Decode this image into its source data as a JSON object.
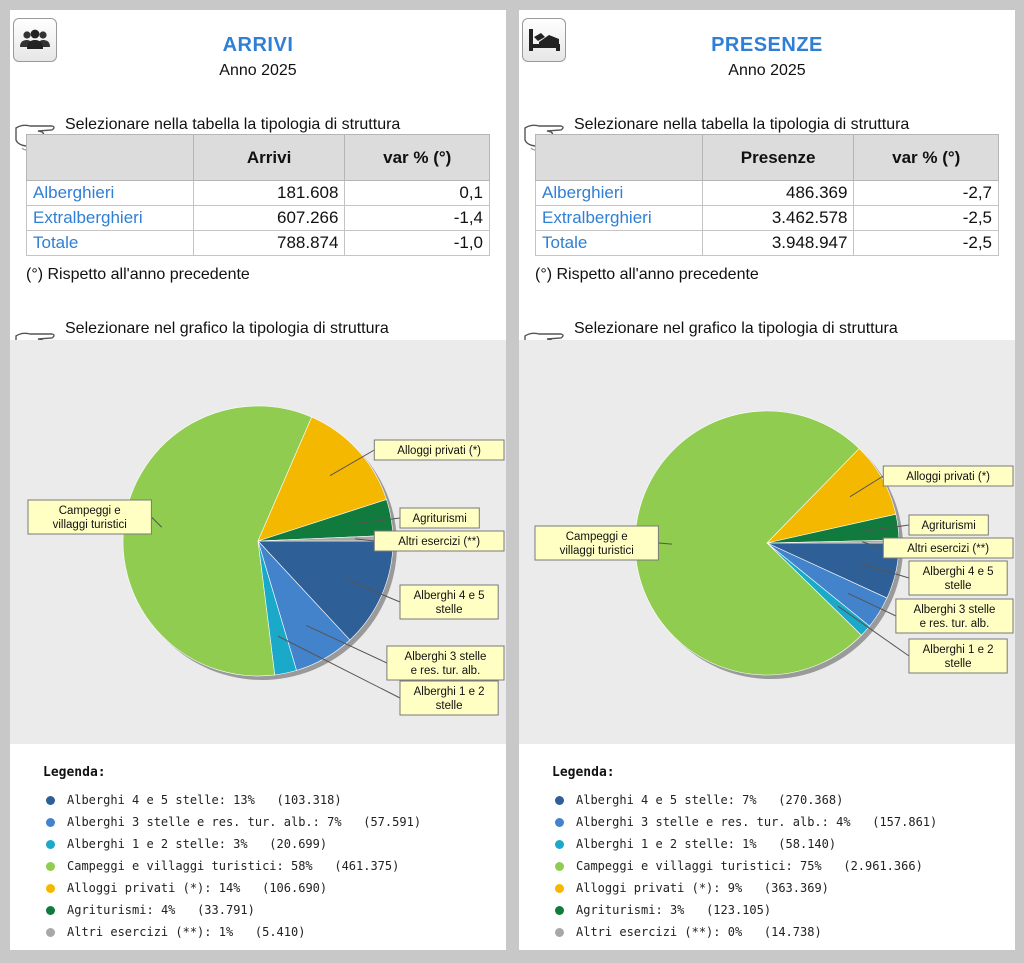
{
  "panels": [
    {
      "id": "arrivi",
      "icon": "people-group-icon",
      "title": "ARRIVI",
      "subtitle": "Anno 2025",
      "table_instruction": "Selezionare nella tabella la tipologia di struttura",
      "table": {
        "headers": [
          "",
          "Arrivi",
          "var % (°)"
        ],
        "rows": [
          {
            "label": "Alberghieri",
            "value": "181.608",
            "var": "0,1"
          },
          {
            "label": "Extralberghieri",
            "value": "607.266",
            "var": "-1,4"
          },
          {
            "label": "Totale",
            "value": "788.874",
            "var": "-1,0"
          }
        ]
      },
      "note": "(°) Rispetto all'anno precedente",
      "chart_instruction": "Selezionare nel grafico la tipologia di struttura",
      "legend_title": "Legenda:",
      "chart_data": {
        "type": "pie",
        "slices": [
          {
            "label": "Alberghi 4 e 5 stelle",
            "callout": [
              "Alberghi 4 e 5",
              "stelle"
            ],
            "percent": "13%",
            "value": 103318,
            "value_text": "103.318",
            "color": "#2e5f96"
          },
          {
            "label": "Alberghi 3 stelle e res. tur. alb.",
            "callout": [
              "Alberghi 3 stelle",
              "e res. tur. alb."
            ],
            "percent": "7%",
            "value": 57591,
            "value_text": "57.591",
            "color": "#4383cc"
          },
          {
            "label": "Alberghi 1 e 2 stelle",
            "callout": [
              "Alberghi 1 e 2",
              "stelle"
            ],
            "percent": "3%",
            "value": 20699,
            "value_text": "20.699",
            "color": "#1aa9c9"
          },
          {
            "label": "Campeggi e villaggi turistici",
            "callout": [
              "Campeggi e",
              "villaggi turistici"
            ],
            "percent": "58%",
            "value": 461375,
            "value_text": "461.375",
            "color": "#8fcc4f"
          },
          {
            "label": "Alloggi privati (*)",
            "callout": [
              "Alloggi privati (*)"
            ],
            "percent": "14%",
            "value": 106690,
            "value_text": "106.690",
            "color": "#f5b800"
          },
          {
            "label": "Agriturismi",
            "callout": [
              "Agriturismi"
            ],
            "percent": "4%",
            "value": 33791,
            "value_text": "33.791",
            "color": "#117a3d"
          },
          {
            "label": "Altri esercizi (**)",
            "callout": [
              "Altri esercizi (**)"
            ],
            "percent": "1%",
            "value": 5410,
            "value_text": "5.410",
            "color": "#a8a8a8"
          }
        ]
      }
    },
    {
      "id": "presenze",
      "icon": "bed-icon",
      "title": "PRESENZE",
      "subtitle": "Anno 2025",
      "table_instruction": "Selezionare nella tabella la tipologia di struttura",
      "table": {
        "headers": [
          "",
          "Presenze",
          "var % (°)"
        ],
        "rows": [
          {
            "label": "Alberghieri",
            "value": "486.369",
            "var": "-2,7"
          },
          {
            "label": "Extralberghieri",
            "value": "3.462.578",
            "var": "-2,5"
          },
          {
            "label": "Totale",
            "value": "3.948.947",
            "var": "-2,5"
          }
        ]
      },
      "note": "(°) Rispetto all'anno precedente",
      "chart_instruction": "Selezionare nel grafico la tipologia di struttura",
      "legend_title": "Legenda:",
      "chart_data": {
        "type": "pie",
        "slices": [
          {
            "label": "Alberghi 4 e 5 stelle",
            "callout": [
              "Alberghi 4 e 5",
              "stelle"
            ],
            "percent": "7%",
            "value": 270368,
            "value_text": "270.368",
            "color": "#2e5f96"
          },
          {
            "label": "Alberghi 3 stelle e res. tur. alb.",
            "callout": [
              "Alberghi 3 stelle",
              "e res. tur. alb."
            ],
            "percent": "4%",
            "value": 157861,
            "value_text": "157.861",
            "color": "#4383cc"
          },
          {
            "label": "Alberghi 1 e 2 stelle",
            "callout": [
              "Alberghi 1 e 2",
              "stelle"
            ],
            "percent": "1%",
            "value": 58140,
            "value_text": "58.140",
            "color": "#1aa9c9"
          },
          {
            "label": "Campeggi e villaggi turistici",
            "callout": [
              "Campeggi e",
              "villaggi turistici"
            ],
            "percent": "75%",
            "value": 2961366,
            "value_text": "2.961.366",
            "color": "#8fcc4f"
          },
          {
            "label": "Alloggi privati (*)",
            "callout": [
              "Alloggi privati (*)"
            ],
            "percent": "9%",
            "value": 363369,
            "value_text": "363.369",
            "color": "#f5b800"
          },
          {
            "label": "Agriturismi",
            "callout": [
              "Agriturismi"
            ],
            "percent": "3%",
            "value": 123105,
            "value_text": "123.105",
            "color": "#117a3d"
          },
          {
            "label": "Altri esercizi (**)",
            "callout": [
              "Altri esercizi (**)"
            ],
            "percent": "0%",
            "value": 14738,
            "value_text": "14.738",
            "color": "#a8a8a8"
          }
        ]
      }
    }
  ]
}
